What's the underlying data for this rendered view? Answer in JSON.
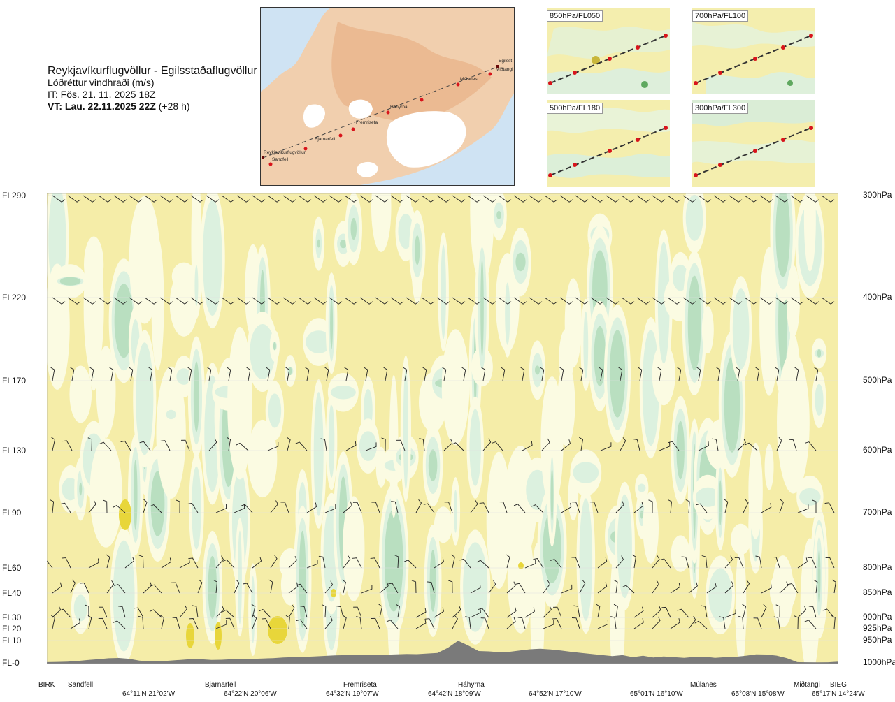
{
  "header": {
    "route": "Reykjavíkurflugvöllur - Egilsstaðaflugvöllur",
    "variable": "Lóðréttur vindhraði (m/s)",
    "issue_time": "IT: Fös. 21. 11. 2025 18Z",
    "valid_time_bold": "VT: Lau. 22.11.2025 22Z",
    "valid_time_suffix": " (+28 h)"
  },
  "map": {
    "stations": [
      "Reykjavíkurflugvöllur",
      "Sandfell",
      "Bjarnarfell",
      "Fremriseta",
      "Háhyrna",
      "Múlanes",
      "Egilsst",
      "Miðtangi"
    ]
  },
  "mini_maps": [
    {
      "label": "850hPa/FL050"
    },
    {
      "label": "700hPa/FL100"
    },
    {
      "label": "500hPa/FL180"
    },
    {
      "label": "300hPa/FL300"
    }
  ],
  "chart_data": {
    "type": "heatmap",
    "title": "Reykjavíkurflugvöllur - Egilsstaðaflugvöllur",
    "quantity": "Lóðréttur vindhraði (m/s)",
    "y_axis_left": [
      "FL290",
      "FL220",
      "FL170",
      "FL130",
      "FL90",
      "FL60",
      "FL40",
      "FL30",
      "FL20",
      "FL10",
      "FL-0"
    ],
    "y_axis_right": [
      "300hPa",
      "400hPa",
      "500hPa",
      "600hPa",
      "700hPa",
      "800hPa",
      "850hPa",
      "900hPa",
      "925hPa",
      "950hPa",
      "1000hPa"
    ],
    "x_station_labels": [
      "BIRK",
      "Sandfell",
      "Bjarnarfell",
      "Fremriseta",
      "Háhyrna",
      "Múlanes",
      "Miðtangi",
      "BIEG"
    ],
    "x_coord_labels": [
      "64°11'N 21°02'W",
      "64°22'N 20°06'W",
      "64°32'N 19°07'W",
      "64°42'N 18°09'W",
      "64°52'N 17°10'W",
      "65°01'N 16°10'W",
      "65°08'N 15°08'W",
      "65°17'N 14°24'W"
    ],
    "colors": {
      "neutral": "#f5eda8",
      "weak_up": "#fbfbe2",
      "up_light": "#dcf1df",
      "up_mid": "#b9dfc0",
      "down": "#e8d63a",
      "terrain": "#7a7a7a",
      "barb": "#222222"
    },
    "terrain_profile_fl": [
      0.5,
      0.6,
      0.8,
      1.2,
      1.8,
      2.3,
      2.9,
      3.1,
      2.6,
      1.4,
      0.9,
      1.0,
      1.4,
      1.9,
      2.4,
      2.3,
      1.9,
      2.0,
      2.3,
      2.2,
      2.5,
      2.8,
      3.0,
      3.4,
      3.6,
      3.8,
      4.1,
      4.4,
      4.7,
      4.9,
      5.1,
      5.0,
      5.1,
      5.2,
      5.4,
      5.6,
      5.5,
      5.9,
      6.3,
      9.5,
      14.0,
      11.0,
      7.5,
      7.3,
      6.8,
      7.0,
      7.8,
      8.6,
      8.9,
      8.5,
      7.8,
      7.0,
      6.3,
      5.6,
      5.0,
      4.3,
      4.9,
      3.6,
      4.5,
      3.4,
      4.1,
      3.6,
      3.2,
      3.8,
      3.9,
      3.2,
      3.6,
      3.9,
      4.5,
      5.4,
      5.3,
      4.6,
      3.0,
      0.5,
      0.4,
      0.3,
      0.4,
      0.8
    ]
  }
}
